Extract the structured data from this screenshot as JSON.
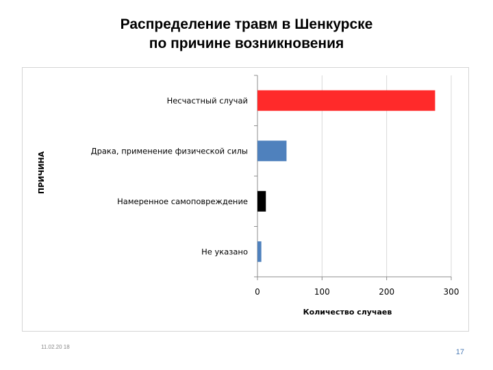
{
  "slide": {
    "title_line1": "Распределение травм в Шенкурске",
    "title_line2": "по причине возникновения",
    "footer_date": "11.02.20 18",
    "page_number": "17",
    "accent_color": "#4a7ab5"
  },
  "chart_data": {
    "type": "bar",
    "orientation": "horizontal",
    "categories": [
      "Несчастный случай",
      "Драка, применение физической силы",
      "Намеренное самоповреждение",
      "Не указано"
    ],
    "values": [
      275,
      45,
      13,
      6
    ],
    "colors": [
      "#ff2a2a",
      "#4f81bd",
      "#000000",
      "#4f81bd"
    ],
    "xlabel": "Количество случаев",
    "ylabel": "ПРИЧИНА",
    "xlim": [
      0,
      300
    ],
    "xticks": [
      0,
      100,
      200,
      300
    ],
    "grid": true
  }
}
